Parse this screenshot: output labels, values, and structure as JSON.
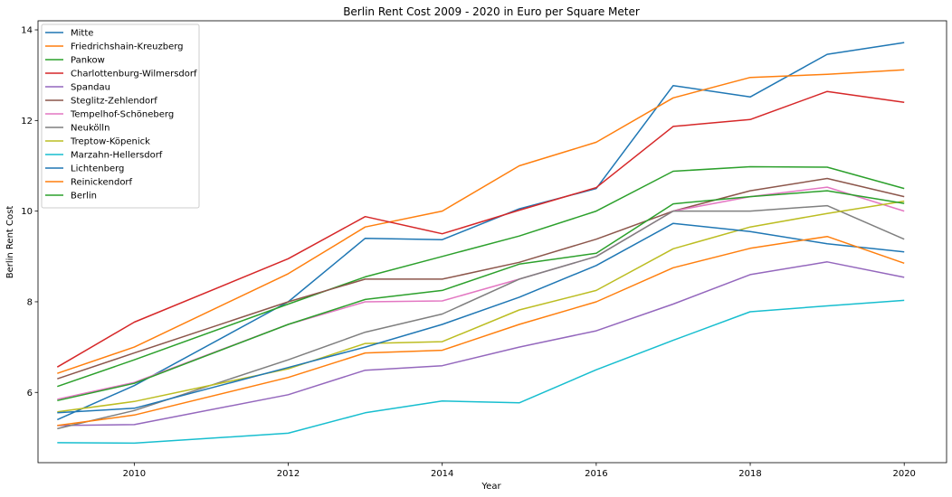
{
  "chart_data": {
    "type": "line",
    "title": "Berlin Rent Cost 2009 - 2020 in Euro per Square Meter",
    "xlabel": "Year",
    "ylabel": "Berlin Rent Cost",
    "xlim": [
      2008.75,
      2020.55
    ],
    "ylim": [
      4.45,
      14.2
    ],
    "xticks": [
      2010,
      2012,
      2014,
      2016,
      2018,
      2020
    ],
    "yticks": [
      6,
      8,
      10,
      12,
      14
    ],
    "grid": false,
    "legend_position": "top-left",
    "x": [
      2009,
      2010,
      2012,
      2013,
      2014,
      2015,
      2016,
      2017,
      2018,
      2019,
      2020
    ],
    "series": [
      {
        "name": "Mitte",
        "color": "#1f77b4",
        "values": [
          5.4,
          6.15,
          8.0,
          9.4,
          9.37,
          10.05,
          10.5,
          12.77,
          12.52,
          13.46,
          13.72
        ]
      },
      {
        "name": "Friedrichshain-Kreuzberg",
        "color": "#ff7f0e",
        "values": [
          6.42,
          7.0,
          8.62,
          9.65,
          10.0,
          11.0,
          11.52,
          12.5,
          12.95,
          13.02,
          13.12
        ]
      },
      {
        "name": "Pankow",
        "color": "#2ca02c",
        "values": [
          6.13,
          6.72,
          7.95,
          8.55,
          9.0,
          9.45,
          10.0,
          10.88,
          10.98,
          10.97,
          10.5
        ]
      },
      {
        "name": "Charlottenburg-Wilmersdorf",
        "color": "#d62728",
        "values": [
          6.56,
          7.55,
          8.95,
          9.88,
          9.5,
          10.02,
          10.52,
          11.87,
          12.02,
          12.64,
          12.4
        ]
      },
      {
        "name": "Spandau",
        "color": "#9467bd",
        "values": [
          5.27,
          5.29,
          5.95,
          6.49,
          6.59,
          7.0,
          7.36,
          7.95,
          8.6,
          8.88,
          8.54
        ]
      },
      {
        "name": "Steglitz-Zehlendorf",
        "color": "#8c564b",
        "values": [
          6.3,
          6.87,
          8.0,
          8.5,
          8.5,
          8.87,
          9.38,
          10.0,
          10.45,
          10.72,
          10.32
        ]
      },
      {
        "name": "Tempelhof-Schöneberg",
        "color": "#e377c2",
        "values": [
          5.85,
          6.22,
          7.5,
          8.0,
          8.02,
          8.5,
          9.0,
          10.0,
          10.32,
          10.53,
          10.0
        ]
      },
      {
        "name": "Neukölln",
        "color": "#7f7f7f",
        "values": [
          5.2,
          5.6,
          6.72,
          7.33,
          7.73,
          8.5,
          9.0,
          10.0,
          10.0,
          10.12,
          9.38
        ]
      },
      {
        "name": "Treptow-Köpenick",
        "color": "#bcbd22",
        "values": [
          5.57,
          5.8,
          6.52,
          7.08,
          7.12,
          7.82,
          8.25,
          9.17,
          9.65,
          9.95,
          10.22
        ]
      },
      {
        "name": "Marzahn-Hellersdorf",
        "color": "#17becf",
        "values": [
          4.89,
          4.88,
          5.1,
          5.55,
          5.81,
          5.77,
          6.5,
          7.15,
          7.78,
          7.91,
          8.03
        ]
      },
      {
        "name": "Lichtenberg",
        "color": "#1f77b4",
        "values": [
          5.55,
          5.65,
          6.55,
          7.0,
          7.5,
          8.1,
          8.8,
          9.73,
          9.55,
          9.28,
          9.1
        ]
      },
      {
        "name": "Reinickendorf",
        "color": "#ff7f0e",
        "values": [
          5.27,
          5.5,
          6.33,
          6.87,
          6.93,
          7.5,
          8.0,
          8.75,
          9.18,
          9.44,
          8.85
        ]
      },
      {
        "name": "Berlin",
        "color": "#2ca02c",
        "values": [
          5.82,
          6.2,
          7.5,
          8.05,
          8.25,
          8.83,
          9.07,
          10.16,
          10.32,
          10.45,
          10.17
        ]
      }
    ]
  }
}
